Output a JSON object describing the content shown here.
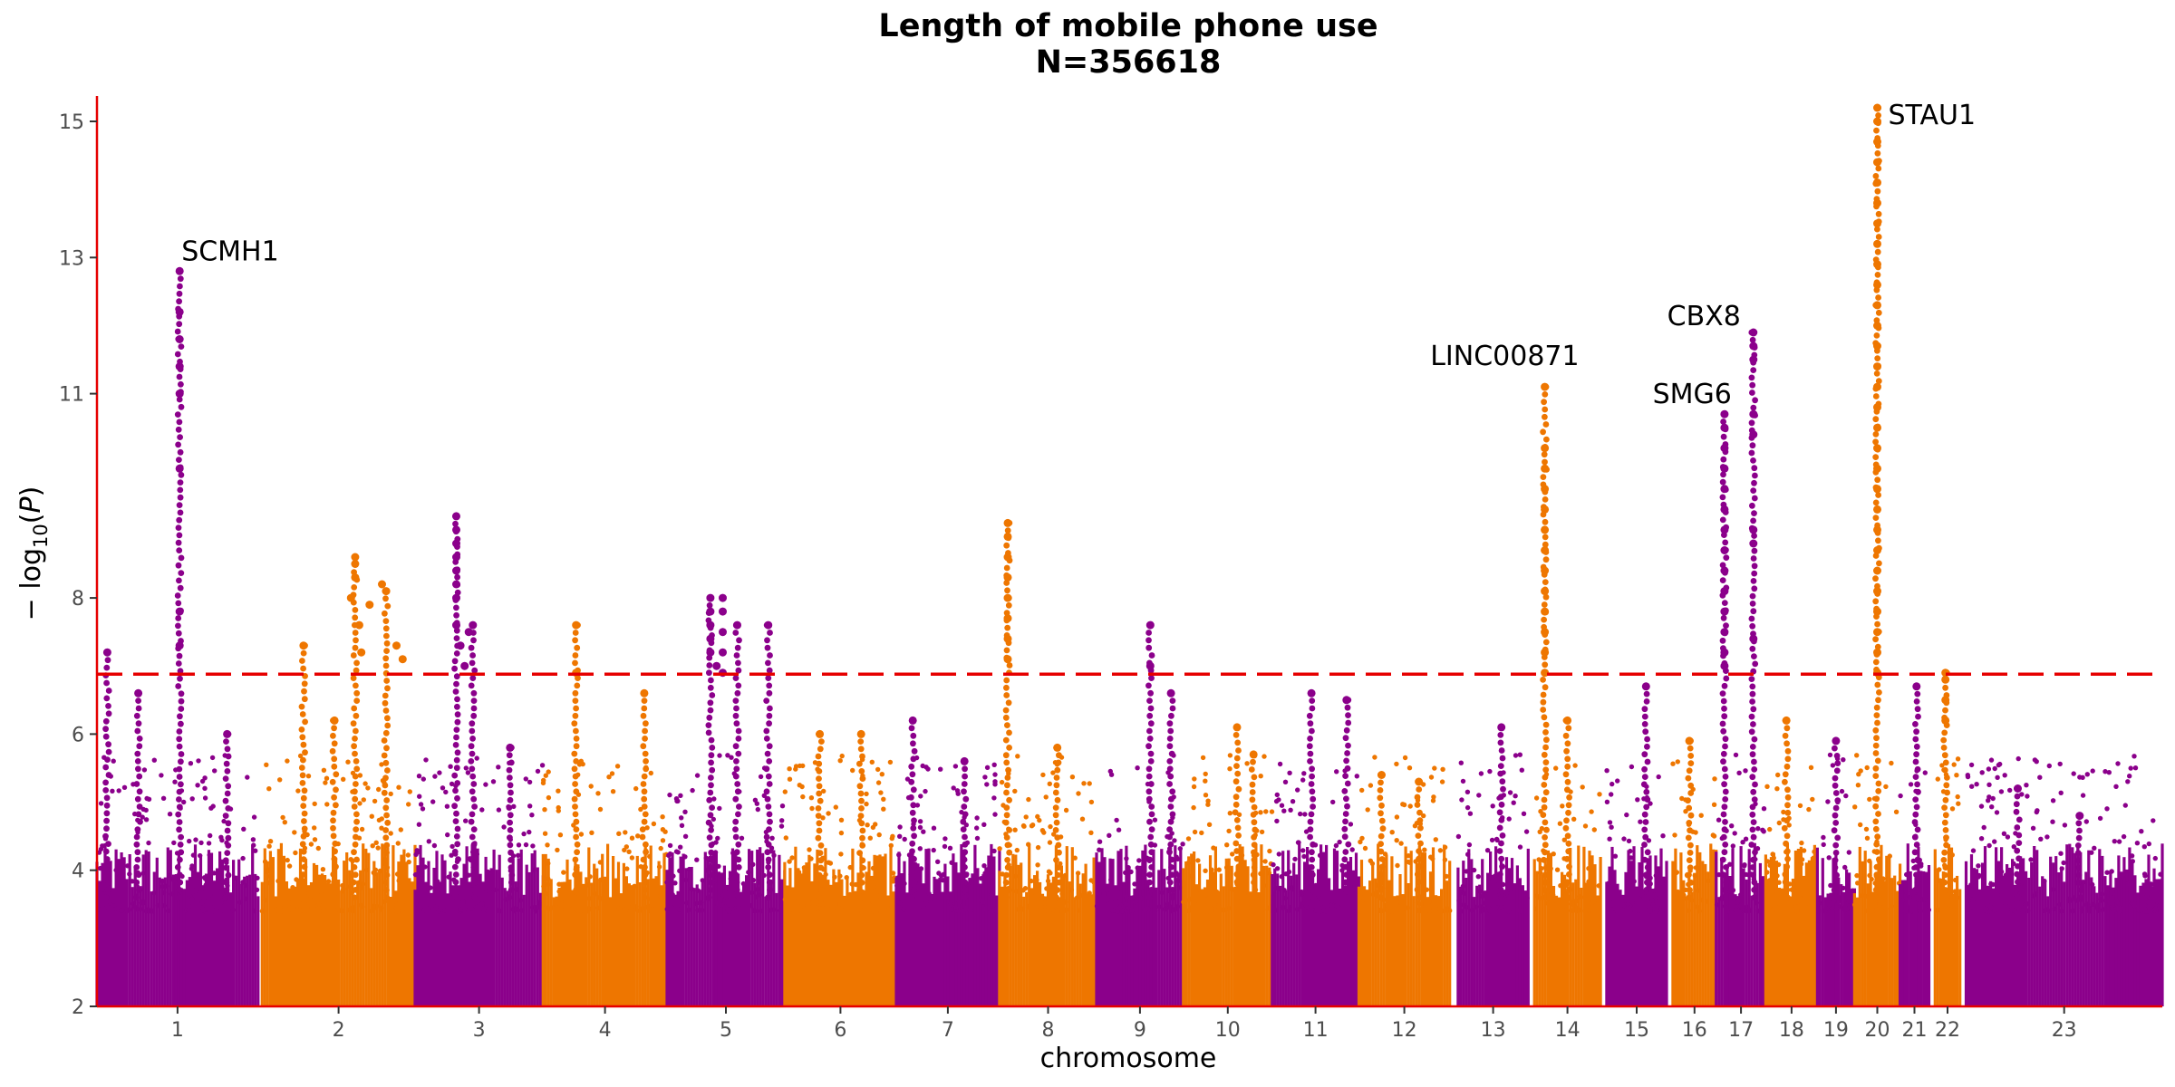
{
  "chart_data": {
    "type": "scatter",
    "title": "Length of mobile phone use",
    "subtitle": "N=356618",
    "xlabel": "chromosome",
    "ylabel": "− log10(P)",
    "ylim": [
      2,
      15.4
    ],
    "yticks": [
      2,
      4,
      6,
      8,
      11,
      13,
      15
    ],
    "threshold": 6.88,
    "threshold_style": "dashed red",
    "grid": false,
    "legend": "none",
    "colors": {
      "odd_chromosome": "#8b008b",
      "even_chromosome": "#ee7600",
      "threshold": "#e60000",
      "axis": "#e60000"
    },
    "chromosomes": [
      {
        "label": "1",
        "start": 0.0,
        "end": 0.078,
        "peaks": [
          [
            0.005,
            7.2
          ],
          [
            0.04,
            12.8
          ],
          [
            0.02,
            6.6
          ],
          [
            0.063,
            6.0
          ]
        ]
      },
      {
        "label": "2",
        "start": 0.08,
        "end": 0.154,
        "peaks": [
          [
            0.125,
            8.6
          ],
          [
            0.14,
            8.1
          ],
          [
            0.1,
            7.3
          ],
          [
            0.115,
            6.2
          ]
        ]
      },
      {
        "label": "3",
        "start": 0.154,
        "end": 0.216,
        "peaks": [
          [
            0.174,
            9.2
          ],
          [
            0.182,
            7.6
          ],
          [
            0.2,
            5.8
          ]
        ]
      },
      {
        "label": "4",
        "start": 0.216,
        "end": 0.276,
        "peaks": [
          [
            0.232,
            7.6
          ],
          [
            0.265,
            6.6
          ]
        ]
      },
      {
        "label": "5",
        "start": 0.276,
        "end": 0.333,
        "peaks": [
          [
            0.297,
            8.0
          ],
          [
            0.31,
            7.6
          ],
          [
            0.325,
            7.6
          ]
        ]
      },
      {
        "label": "6",
        "start": 0.333,
        "end": 0.387,
        "peaks": [
          [
            0.35,
            6.0
          ],
          [
            0.37,
            6.0
          ]
        ]
      },
      {
        "label": "7",
        "start": 0.387,
        "end": 0.437,
        "peaks": [
          [
            0.395,
            6.2
          ],
          [
            0.42,
            5.6
          ]
        ]
      },
      {
        "label": "8",
        "start": 0.437,
        "end": 0.484,
        "peaks": [
          [
            0.441,
            9.1
          ],
          [
            0.465,
            5.8
          ]
        ]
      },
      {
        "label": "9",
        "start": 0.484,
        "end": 0.526,
        "peaks": [
          [
            0.51,
            7.6
          ],
          [
            0.52,
            6.6
          ]
        ]
      },
      {
        "label": "10",
        "start": 0.526,
        "end": 0.569,
        "peaks": [
          [
            0.552,
            6.1
          ],
          [
            0.56,
            5.7
          ]
        ]
      },
      {
        "label": "11",
        "start": 0.569,
        "end": 0.611,
        "peaks": [
          [
            0.588,
            6.6
          ],
          [
            0.605,
            6.5
          ]
        ]
      },
      {
        "label": "12",
        "start": 0.611,
        "end": 0.655,
        "peaks": [
          [
            0.622,
            5.4
          ],
          [
            0.64,
            5.3
          ]
        ]
      },
      {
        "label": "13",
        "start": 0.659,
        "end": 0.693,
        "peaks": [
          [
            0.68,
            6.1
          ]
        ]
      },
      {
        "label": "14",
        "start": 0.696,
        "end": 0.728,
        "peaks": [
          [
            0.701,
            11.1
          ],
          [
            0.712,
            6.2
          ]
        ]
      },
      {
        "label": "15",
        "start": 0.731,
        "end": 0.76,
        "peaks": [
          [
            0.75,
            6.7
          ]
        ]
      },
      {
        "label": "16",
        "start": 0.763,
        "end": 0.784,
        "peaks": [
          [
            0.771,
            5.9
          ]
        ]
      },
      {
        "label": "17",
        "start": 0.784,
        "end": 0.808,
        "peaks": [
          [
            0.788,
            10.7
          ],
          [
            0.802,
            11.9
          ]
        ]
      },
      {
        "label": "18",
        "start": 0.808,
        "end": 0.833,
        "peaks": [
          [
            0.818,
            6.2
          ]
        ]
      },
      {
        "label": "19",
        "start": 0.833,
        "end": 0.851,
        "peaks": [
          [
            0.842,
            5.9
          ]
        ]
      },
      {
        "label": "20",
        "start": 0.851,
        "end": 0.873,
        "peaks": [
          [
            0.862,
            15.2
          ]
        ]
      },
      {
        "label": "21",
        "start": 0.873,
        "end": 0.887,
        "peaks": [
          [
            0.881,
            6.7
          ]
        ]
      },
      {
        "label": "22",
        "start": 0.89,
        "end": 0.902,
        "peaks": [
          [
            0.895,
            6.9
          ]
        ]
      },
      {
        "label": "23",
        "start": 0.905,
        "end": 1.0,
        "peaks": [
          [
            0.93,
            5.2
          ],
          [
            0.96,
            4.8
          ]
        ]
      }
    ],
    "annotations": [
      {
        "text": "SCMH1",
        "x": 0.04,
        "y": 12.8
      },
      {
        "text": "LINC00871",
        "x": 0.701,
        "y": 11.1
      },
      {
        "text": "SMG6",
        "x": 0.788,
        "y": 10.7
      },
      {
        "text": "CBX8",
        "x": 0.802,
        "y": 11.9
      },
      {
        "text": "STAU1",
        "x": 0.862,
        "y": 15.2
      }
    ],
    "columns": [
      [
        0.04,
        12.2
      ],
      [
        0.04,
        11.8
      ],
      [
        0.04,
        11.4
      ],
      [
        0.04,
        11.0
      ],
      [
        0.04,
        9.9
      ],
      [
        0.04,
        7.8
      ],
      [
        0.04,
        7.3
      ],
      [
        0.125,
        8.5
      ],
      [
        0.125,
        8.3
      ],
      [
        0.123,
        8.0
      ],
      [
        0.127,
        7.6
      ],
      [
        0.132,
        7.9
      ],
      [
        0.138,
        8.2
      ],
      [
        0.145,
        7.3
      ],
      [
        0.148,
        7.1
      ],
      [
        0.128,
        7.2
      ],
      [
        0.174,
        9.0
      ],
      [
        0.174,
        8.8
      ],
      [
        0.174,
        8.6
      ],
      [
        0.174,
        8.4
      ],
      [
        0.174,
        8.2
      ],
      [
        0.174,
        8.0
      ],
      [
        0.174,
        7.6
      ],
      [
        0.176,
        7.3
      ],
      [
        0.18,
        7.5
      ],
      [
        0.178,
        7.0
      ],
      [
        0.297,
        7.8
      ],
      [
        0.297,
        7.6
      ],
      [
        0.297,
        7.4
      ],
      [
        0.297,
        7.2
      ],
      [
        0.303,
        8.0
      ],
      [
        0.303,
        7.8
      ],
      [
        0.303,
        7.5
      ],
      [
        0.303,
        7.2
      ],
      [
        0.303,
        6.9
      ],
      [
        0.3,
        7.0
      ],
      [
        0.441,
        8.9
      ],
      [
        0.441,
        8.6
      ],
      [
        0.441,
        8.3
      ],
      [
        0.441,
        8.0
      ],
      [
        0.441,
        7.7
      ],
      [
        0.441,
        7.4
      ],
      [
        0.441,
        7.1
      ],
      [
        0.701,
        10.2
      ],
      [
        0.701,
        9.9
      ],
      [
        0.701,
        9.6
      ],
      [
        0.701,
        9.3
      ],
      [
        0.701,
        9.0
      ],
      [
        0.701,
        8.7
      ],
      [
        0.701,
        8.4
      ],
      [
        0.701,
        8.1
      ],
      [
        0.701,
        7.8
      ],
      [
        0.701,
        7.5
      ],
      [
        0.701,
        7.2
      ],
      [
        0.701,
        6.9
      ],
      [
        0.788,
        10.5
      ],
      [
        0.788,
        10.2
      ],
      [
        0.788,
        9.9
      ],
      [
        0.788,
        9.6
      ],
      [
        0.788,
        9.3
      ],
      [
        0.788,
        9.0
      ],
      [
        0.788,
        8.7
      ],
      [
        0.788,
        8.4
      ],
      [
        0.788,
        8.1
      ],
      [
        0.788,
        7.8
      ],
      [
        0.788,
        7.5
      ],
      [
        0.788,
        7.2
      ],
      [
        0.788,
        7.0
      ],
      [
        0.802,
        11.7
      ],
      [
        0.802,
        11.5
      ],
      [
        0.802,
        10.7
      ],
      [
        0.802,
        10.4
      ],
      [
        0.802,
        9.0
      ],
      [
        0.802,
        8.8
      ],
      [
        0.802,
        7.4
      ],
      [
        0.862,
        15.0
      ],
      [
        0.862,
        14.7
      ],
      [
        0.862,
        14.4
      ],
      [
        0.862,
        14.1
      ],
      [
        0.862,
        13.8
      ],
      [
        0.862,
        13.5
      ],
      [
        0.862,
        13.2
      ],
      [
        0.862,
        12.9
      ],
      [
        0.862,
        12.6
      ],
      [
        0.862,
        12.3
      ],
      [
        0.862,
        12.0
      ],
      [
        0.862,
        11.7
      ],
      [
        0.862,
        11.4
      ],
      [
        0.862,
        11.1
      ],
      [
        0.862,
        10.8
      ],
      [
        0.862,
        10.5
      ],
      [
        0.862,
        10.2
      ],
      [
        0.862,
        9.9
      ],
      [
        0.862,
        9.6
      ],
      [
        0.862,
        9.3
      ],
      [
        0.862,
        9.0
      ],
      [
        0.862,
        8.7
      ],
      [
        0.862,
        8.4
      ],
      [
        0.862,
        8.1
      ],
      [
        0.862,
        7.8
      ],
      [
        0.862,
        7.5
      ],
      [
        0.862,
        7.2
      ],
      [
        0.862,
        6.9
      ],
      [
        0.51,
        7.0
      ],
      [
        0.232,
        6.9
      ],
      [
        0.895,
        6.8
      ],
      [
        0.895,
        6.5
      ],
      [
        0.895,
        6.2
      ]
    ]
  }
}
